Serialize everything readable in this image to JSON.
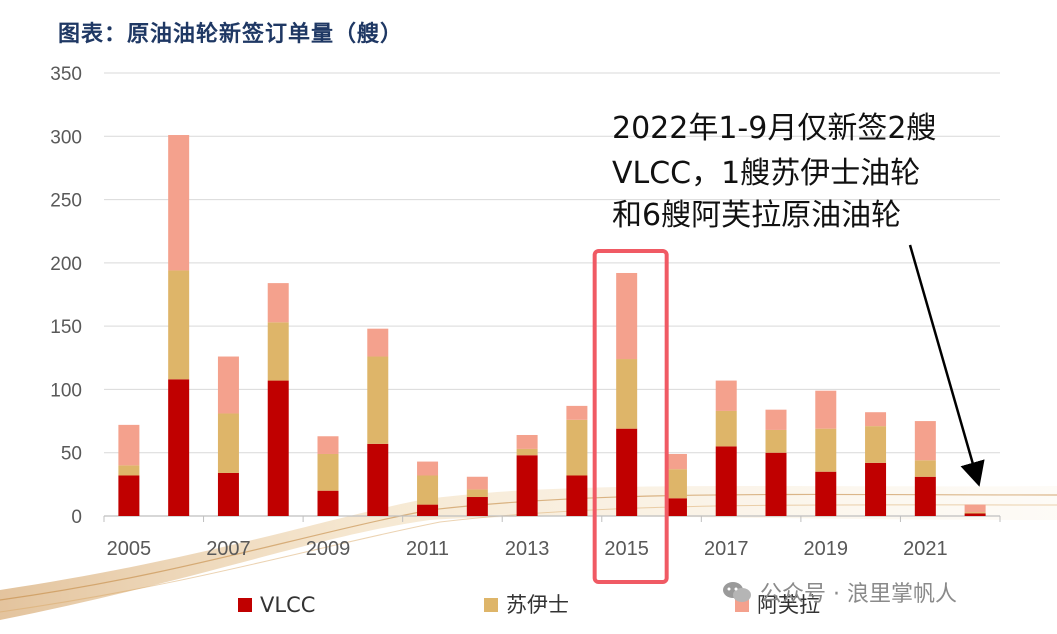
{
  "chart_data": {
    "type": "bar",
    "stacked": true,
    "title": "图表：原油油轮新签订单量（艘）",
    "xlabel": "",
    "ylabel": "",
    "ylim": [
      0,
      350
    ],
    "yticks": [
      0,
      50,
      100,
      150,
      200,
      250,
      300,
      350
    ],
    "grid": true,
    "categories": [
      "2005",
      "2006",
      "2007",
      "2008",
      "2009",
      "2010",
      "2011",
      "2012",
      "2013",
      "2014",
      "2015",
      "2016",
      "2017",
      "2018",
      "2019",
      "2020",
      "2021",
      "2022"
    ],
    "x_tick_labels": [
      "2005",
      "2007",
      "2009",
      "2011",
      "2013",
      "2015",
      "2017",
      "2019",
      "2021"
    ],
    "series": [
      {
        "name": "VLCC",
        "color": "#c00000",
        "values": [
          32,
          108,
          34,
          107,
          20,
          57,
          9,
          15,
          48,
          32,
          69,
          14,
          55,
          50,
          35,
          42,
          31,
          2
        ]
      },
      {
        "name": "苏伊士",
        "color": "#deb569",
        "values": [
          8,
          86,
          47,
          46,
          29,
          69,
          23,
          6,
          5,
          44,
          55,
          23,
          28,
          18,
          34,
          29,
          13,
          1
        ]
      },
      {
        "name": "阿芙拉",
        "color": "#f4a18d",
        "values": [
          32,
          107,
          45,
          31,
          14,
          22,
          11,
          10,
          11,
          11,
          68,
          12,
          24,
          16,
          30,
          11,
          31,
          6
        ]
      }
    ],
    "highlight": {
      "category": "2015",
      "color": "#f05a64"
    },
    "annotation": {
      "lines": [
        "2022年1-9月仅新签2艘",
        "VLCC，1艘苏伊士油轮",
        "和6艘阿芙拉原油油轮"
      ],
      "target": "2022"
    },
    "legend": {
      "position": "bottom",
      "labels": [
        "VLCC",
        "苏伊士",
        "阿芙拉"
      ]
    }
  },
  "watermark": "公众号 · 浪里掌帆人"
}
